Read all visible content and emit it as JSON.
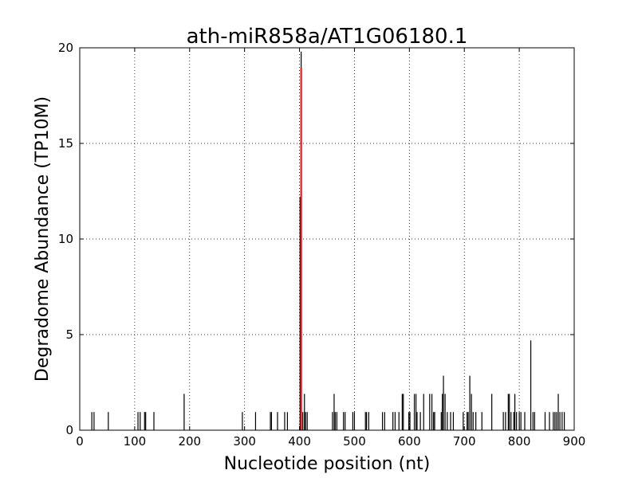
{
  "chart_data": {
    "type": "bar",
    "title": "ath-miR858a/AT1G06180.1",
    "xlabel": "Nucleotide position (nt)",
    "ylabel": "Degradome Abundance (TP10M)",
    "xlim": [
      0,
      900
    ],
    "ylim": [
      0,
      20
    ],
    "xticks": [
      "0",
      "100",
      "200",
      "300",
      "400",
      "500",
      "600",
      "700",
      "800",
      "900"
    ],
    "yticks": [
      "0",
      "5",
      "10",
      "15",
      "20"
    ],
    "grid": true,
    "colors": {
      "default": "#000000",
      "highlight": "#e41a1c"
    },
    "series": [
      {
        "values": [
          [
            22,
            0.95
          ],
          [
            26,
            0.95
          ],
          [
            52,
            0.95
          ],
          [
            106,
            0.95
          ],
          [
            110,
            0.95
          ],
          [
            118,
            0.95
          ],
          [
            120,
            0.95
          ],
          [
            135,
            0.95
          ],
          [
            190,
            1.9
          ],
          [
            296,
            0.95
          ],
          [
            320,
            0.95
          ],
          [
            347,
            0.95
          ],
          [
            349,
            0.95
          ],
          [
            360,
            0.95
          ],
          [
            373,
            0.95
          ],
          [
            378,
            0.95
          ],
          [
            401,
            12.2
          ],
          [
            403,
            19.8
          ],
          [
            406,
            0.95
          ],
          [
            409,
            1.9
          ],
          [
            411,
            0.95
          ],
          [
            414,
            0.95
          ],
          [
            460,
            0.95
          ],
          [
            463,
            1.9
          ],
          [
            465,
            0.95
          ],
          [
            468,
            0.95
          ],
          [
            480,
            0.95
          ],
          [
            483,
            0.95
          ],
          [
            497,
            0.95
          ],
          [
            500,
            0.95
          ],
          [
            520,
            0.95
          ],
          [
            522,
            0.95
          ],
          [
            526,
            0.95
          ],
          [
            551,
            0.95
          ],
          [
            555,
            0.95
          ],
          [
            570,
            0.95
          ],
          [
            574,
            0.95
          ],
          [
            581,
            0.95
          ],
          [
            587,
            1.9
          ],
          [
            589,
            1.9
          ],
          [
            599,
            0.95
          ],
          [
            601,
            0.95
          ],
          [
            609,
            1.9
          ],
          [
            612,
            1.9
          ],
          [
            614,
            0.95
          ],
          [
            620,
            0.95
          ],
          [
            626,
            1.9
          ],
          [
            637,
            1.9
          ],
          [
            641,
            1.9
          ],
          [
            644,
            0.95
          ],
          [
            646,
            0.95
          ],
          [
            658,
            0.95
          ],
          [
            660,
            1.9
          ],
          [
            662,
            2.85
          ],
          [
            665,
            1.9
          ],
          [
            669,
            0.95
          ],
          [
            675,
            0.95
          ],
          [
            680,
            0.95
          ],
          [
            698,
            0.95
          ],
          [
            705,
            0.95
          ],
          [
            707,
            0.95
          ],
          [
            710,
            2.85
          ],
          [
            713,
            1.9
          ],
          [
            716,
            0.95
          ],
          [
            721,
            0.95
          ],
          [
            732,
            0.95
          ],
          [
            750,
            1.9
          ],
          [
            771,
            0.95
          ],
          [
            775,
            0.95
          ],
          [
            780,
            1.9
          ],
          [
            782,
            1.9
          ],
          [
            785,
            0.95
          ],
          [
            790,
            0.95
          ],
          [
            792,
            1.9
          ],
          [
            795,
            0.95
          ],
          [
            800,
            0.95
          ],
          [
            803,
            0.95
          ],
          [
            810,
            0.95
          ],
          [
            821,
            4.7
          ],
          [
            825,
            0.95
          ],
          [
            828,
            0.95
          ],
          [
            847,
            0.95
          ],
          [
            855,
            0.95
          ],
          [
            862,
            0.95
          ],
          [
            865,
            0.95
          ],
          [
            868,
            0.95
          ],
          [
            871,
            1.9
          ],
          [
            874,
            0.95
          ],
          [
            878,
            0.95
          ],
          [
            882,
            0.95
          ]
        ]
      },
      {
        "values": [
          [
            403,
            18.95
          ]
        ]
      }
    ]
  }
}
